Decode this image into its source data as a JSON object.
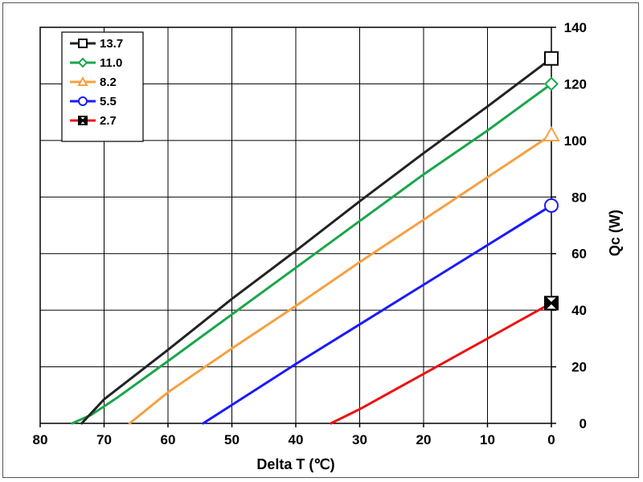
{
  "chart_data": {
    "type": "line",
    "xlabel": "Delta T (℃)",
    "ylabel": "Qc (W)",
    "xlim": [
      80,
      0
    ],
    "ylim": [
      0,
      140
    ],
    "x_ticks": [
      80,
      70,
      60,
      50,
      40,
      30,
      20,
      10,
      0
    ],
    "y_ticks": [
      0,
      20,
      40,
      60,
      80,
      100,
      120,
      140
    ],
    "grid": true,
    "x_reversed": true,
    "y_axis_side": "right",
    "legend_position": "top-left",
    "series": [
      {
        "name": "13.7",
        "color": "#222222",
        "marker": "square",
        "x": [
          0,
          10,
          20,
          30,
          40,
          50,
          60,
          70,
          73.5
        ],
        "y": [
          129,
          112,
          95.5,
          78.5,
          61,
          44,
          26,
          8.5,
          0
        ],
        "end_marker": {
          "x": 0,
          "y": 129
        }
      },
      {
        "name": "11.0",
        "color": "#1aa64a",
        "marker": "diamond",
        "x": [
          0,
          10,
          20,
          30,
          40,
          50,
          60,
          68,
          72,
          75
        ],
        "y": [
          120,
          103.5,
          88,
          71.5,
          55,
          38.5,
          22,
          9,
          3,
          0
        ],
        "end_marker": {
          "x": 0,
          "y": 120
        }
      },
      {
        "name": "8.2",
        "color": "#f7a040",
        "marker": "triangle",
        "x": [
          0,
          10,
          20,
          30,
          40,
          50,
          60,
          66
        ],
        "y": [
          102,
          87,
          72,
          57,
          41.5,
          26.5,
          11,
          0
        ],
        "end_marker": {
          "x": 0,
          "y": 102
        }
      },
      {
        "name": "5.5",
        "color": "#1a1aff",
        "marker": "circle",
        "x": [
          0,
          10,
          20,
          30,
          40,
          50,
          54.5
        ],
        "y": [
          77,
          63,
          49,
          35,
          21,
          6.5,
          0
        ],
        "end_marker": {
          "x": 0,
          "y": 77
        }
      },
      {
        "name": "2.7",
        "color": "#ee1111",
        "marker": "x-square",
        "x": [
          0,
          10,
          20,
          30,
          34.5
        ],
        "y": [
          42.5,
          30,
          17.5,
          5,
          0
        ],
        "end_marker": {
          "x": 0,
          "y": 42.5
        }
      }
    ]
  }
}
